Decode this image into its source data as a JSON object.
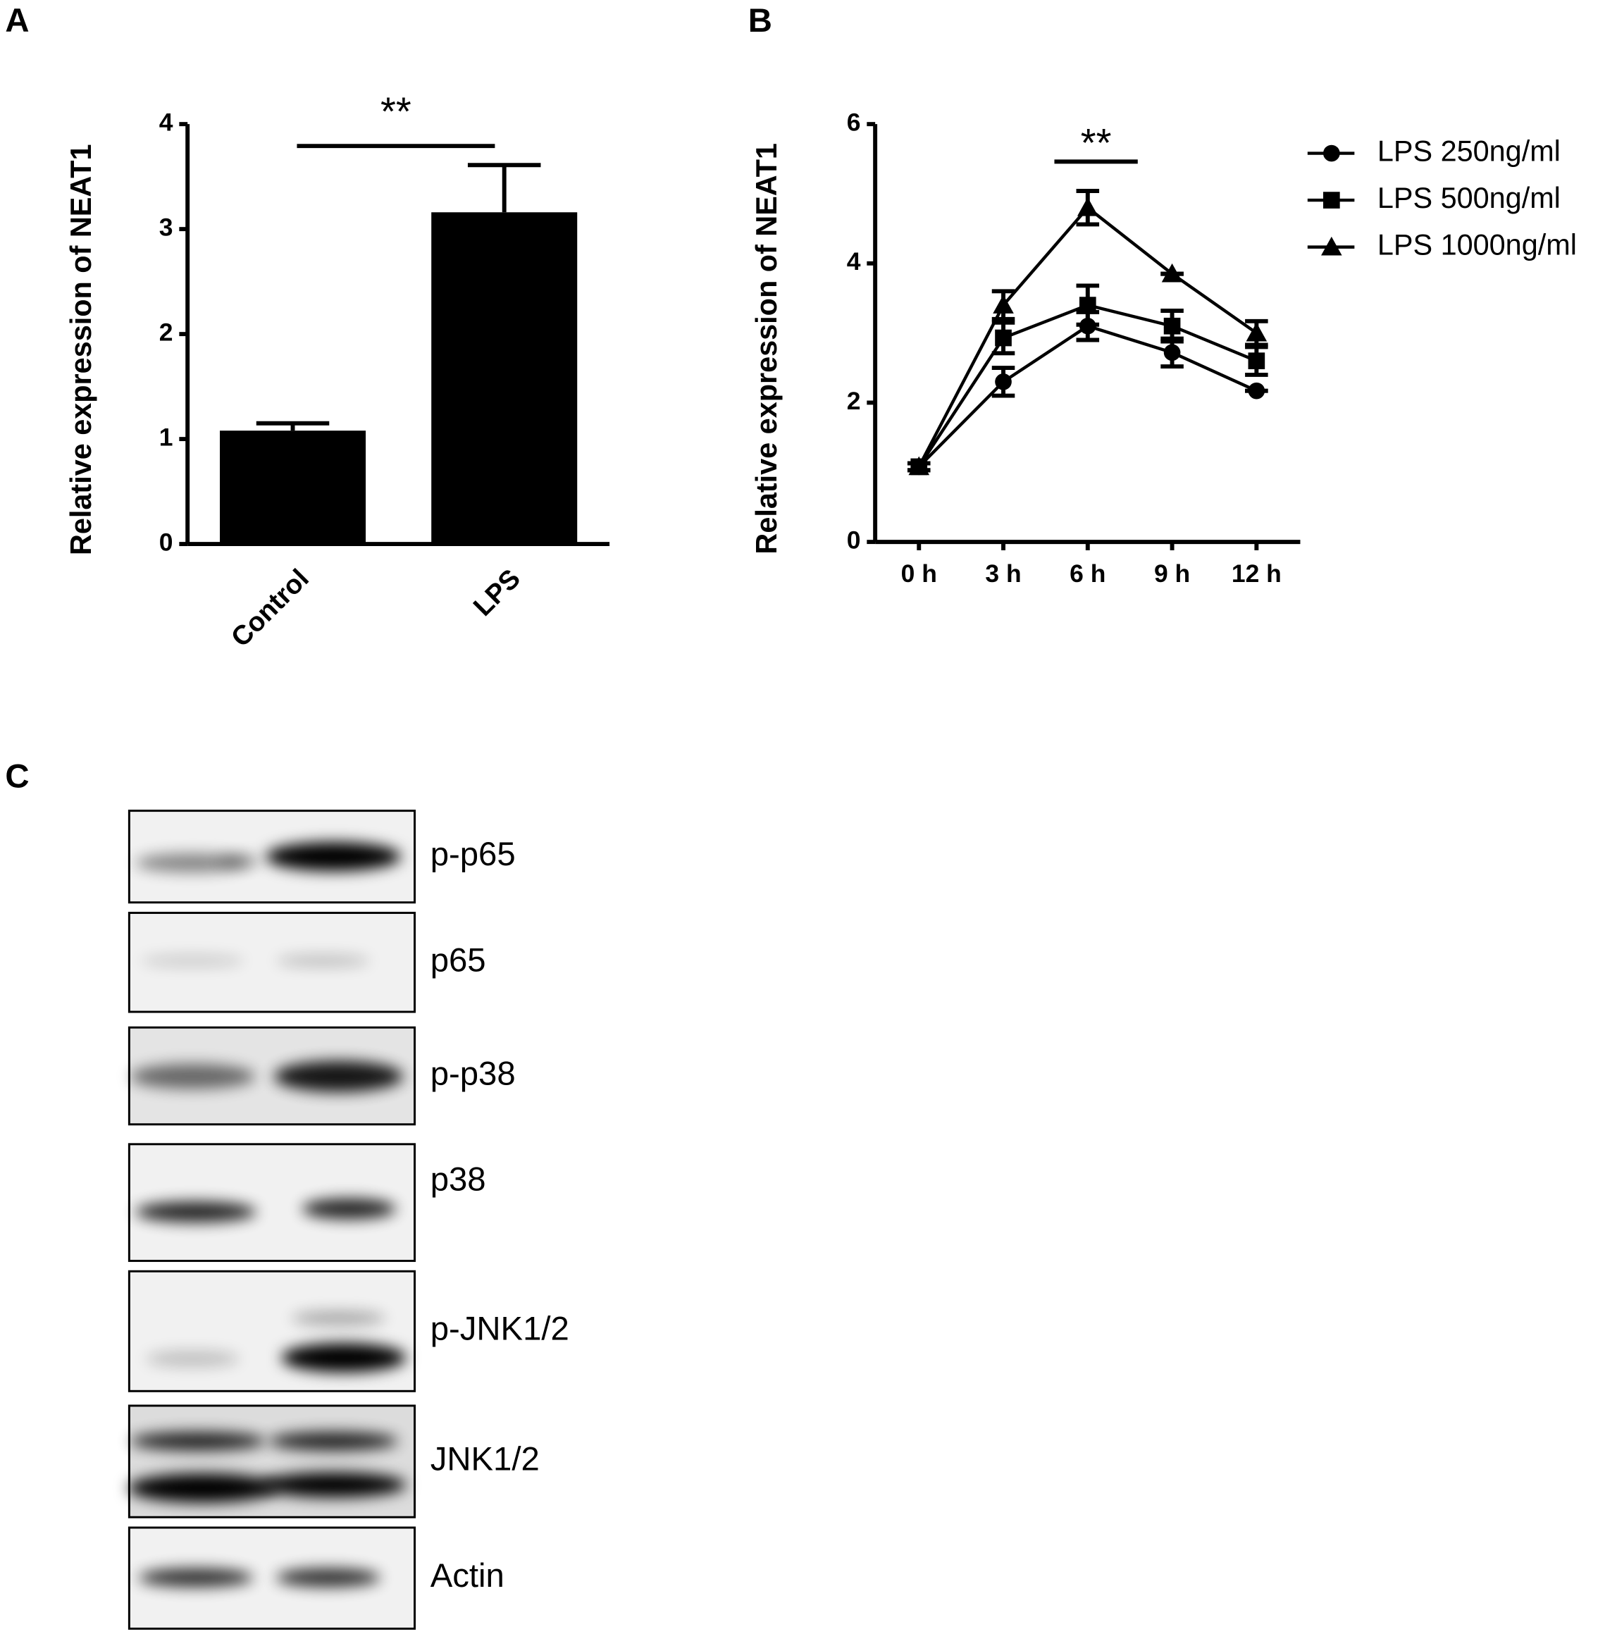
{
  "chart_data": [
    {
      "type": "bar",
      "label": "A",
      "ylabel": "Relative expression of NEAT1",
      "categories": [
        "Control",
        "LPS"
      ],
      "values": [
        1.08,
        3.16
      ],
      "errors": [
        0.07,
        0.45
      ],
      "color": "#000000",
      "ylim": [
        0,
        4
      ],
      "yticks": [
        0,
        1,
        2,
        3,
        4
      ],
      "annotation": "**"
    },
    {
      "type": "line",
      "label": "B",
      "ylabel": "Relative expression of NEAT1",
      "categories": [
        "0 h",
        "3 h",
        "6 h",
        "9 h",
        "12 h"
      ],
      "series": [
        {
          "name": "LPS 250ng/ml",
          "color": "#000000",
          "marker": "circle",
          "values": [
            1.08,
            2.3,
            3.1,
            2.72,
            2.17
          ],
          "errors": [
            0.05,
            0.2,
            0.2,
            0.2,
            0
          ]
        },
        {
          "name": "LPS 500ng/ml",
          "color": "#000000",
          "marker": "square",
          "values": [
            1.08,
            2.93,
            3.4,
            3.1,
            2.6
          ],
          "errors": [
            0.05,
            0.22,
            0.28,
            0.22,
            0.2
          ]
        },
        {
          "name": "LPS 1000ng/ml",
          "color": "#000000",
          "marker": "triangle",
          "values": [
            1.08,
            3.4,
            4.8,
            3.85,
            3.0
          ],
          "errors": [
            0.05,
            0.2,
            0.24,
            0,
            0.17
          ]
        }
      ],
      "ylim": [
        0,
        6
      ],
      "yticks": [
        0,
        2,
        4,
        6
      ],
      "annotation": "**"
    }
  ],
  "blot": {
    "label": "C",
    "rows": [
      "p-p65",
      "p65",
      "p-p38",
      "p38",
      "p-JNK1/2",
      "JNK1/2",
      "Actin"
    ]
  }
}
